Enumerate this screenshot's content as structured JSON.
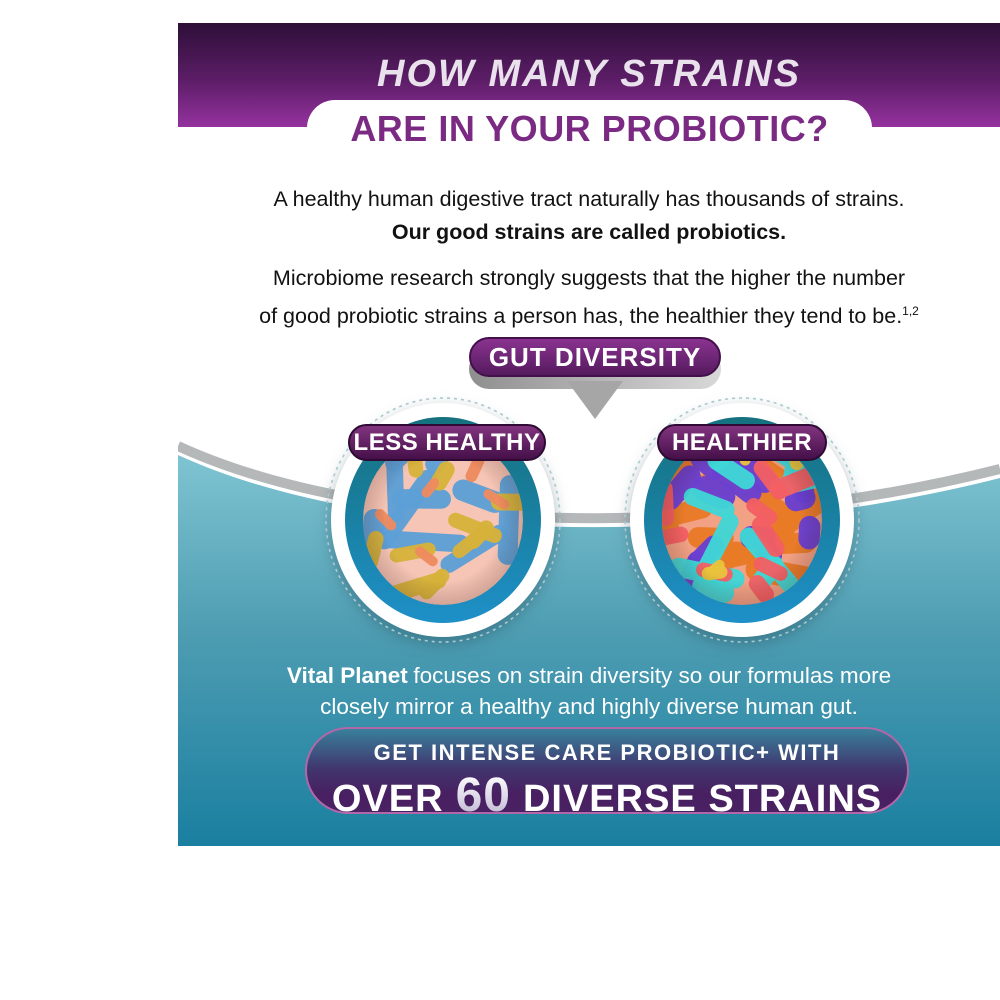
{
  "colors": {
    "band_top": "#2d0f38",
    "band_bottom": "#95329f",
    "title_text": "#7b2a84",
    "teal_top": "#7fc4d2",
    "teal_mid": "#4e9db2",
    "teal_bottom": "#1a7fa0",
    "ring_top": "#15717e",
    "ring_bottom": "#1e90c8",
    "cta_border": "#b267a9"
  },
  "header": {
    "kicker": "HOW MANY STRAINS",
    "title": "ARE IN YOUR PROBIOTIC?"
  },
  "intro": {
    "p1_line1": "A healthy human digestive tract naturally has thousands of strains.",
    "p1_line2": "Our good strains are called probiotics.",
    "p2_line1": "Microbiome research strongly suggests that the higher the number",
    "p2_line2": "of good probiotic strains a person has, the healthier they tend to be.",
    "p2_citation": "1,2"
  },
  "diagram": {
    "badge_label": "GUT DIVERSITY",
    "left": {
      "label": "LESS HEALTHY",
      "dish": {
        "background": "#f6c5b5",
        "species": [
          {
            "name": "blue-rod-bacteria",
            "color": "#5d9fd6",
            "count": 10,
            "len": [
              45,
              95
            ],
            "thick": [
              16,
              22
            ]
          },
          {
            "name": "yellow-rod-bacteria",
            "color": "#d6b23a",
            "count": 10,
            "len": [
              28,
              62
            ],
            "thick": [
              13,
              17
            ]
          },
          {
            "name": "coral-rod-bacteria",
            "color": "#ee8a5f",
            "count": 5,
            "len": [
              16,
              30
            ],
            "thick": [
              9,
              12
            ]
          }
        ]
      }
    },
    "right": {
      "label": "HEALTHIER",
      "dish": {
        "background": "#f2a184",
        "species": [
          {
            "name": "orange-rod-bacteria",
            "color": "#e87a27",
            "count": 16,
            "len": [
              40,
              85
            ],
            "thick": [
              20,
              26
            ]
          },
          {
            "name": "purple-blob-bacteria",
            "color": "#6a3fd1",
            "count": 14,
            "len": [
              28,
              60
            ],
            "thick": [
              20,
              26
            ]
          },
          {
            "name": "cyan-rod-bacteria",
            "color": "#3fd6d6",
            "count": 11,
            "len": [
              40,
              90
            ],
            "thick": [
              16,
              20
            ]
          },
          {
            "name": "red-rod-bacteria",
            "color": "#f25f63",
            "count": 9,
            "len": [
              30,
              60
            ],
            "thick": [
              14,
              20
            ]
          },
          {
            "name": "yellow-bit-bacteria",
            "color": "#e9c33c",
            "count": 5,
            "len": [
              18,
              32
            ],
            "thick": [
              10,
              14
            ]
          }
        ]
      }
    }
  },
  "footer": {
    "brand": "Vital Planet",
    "line1_rest": "focuses on strain diversity so our formulas more",
    "line2": "closely mirror a healthy and highly diverse human gut."
  },
  "cta": {
    "line1": "GET INTENSE CARE PROBIOTIC+ WITH",
    "over": "OVER",
    "number": "60",
    "rest": "DIVERSE STRAINS"
  }
}
